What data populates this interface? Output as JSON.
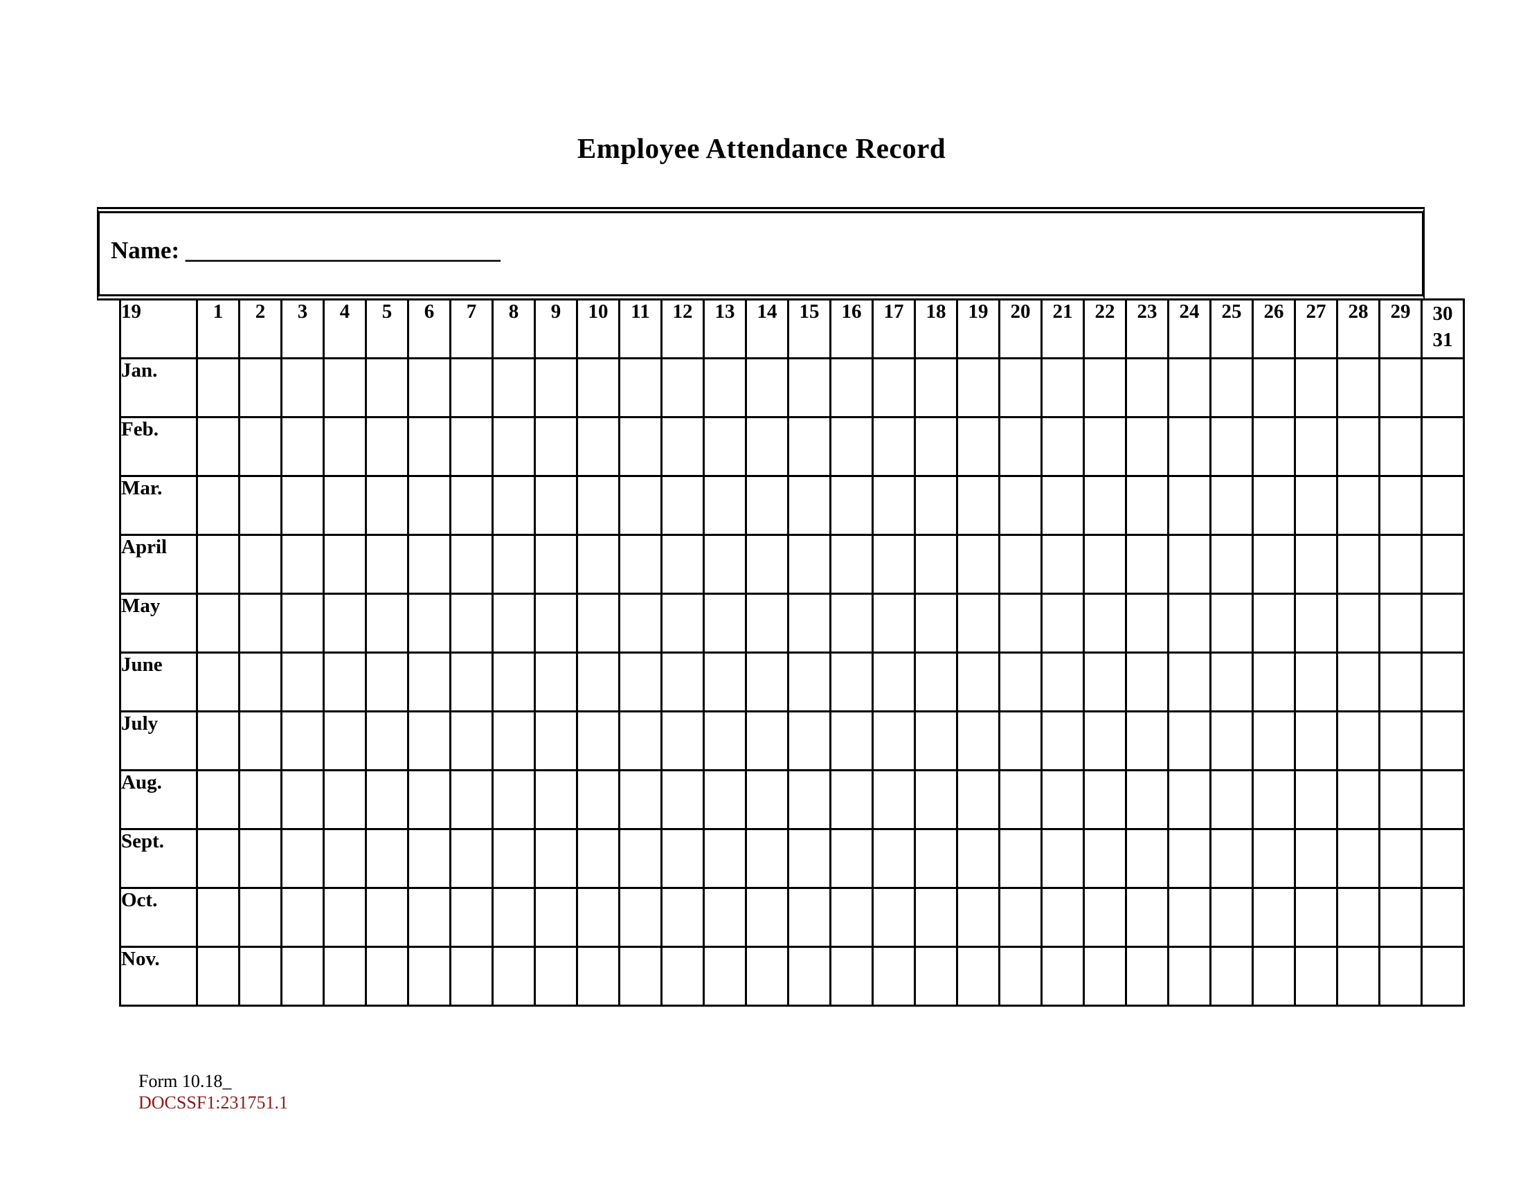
{
  "title": "Employee Attendance Record",
  "name_box": {
    "label": "Name:",
    "underline": "__________________________"
  },
  "table": {
    "year_header": "19",
    "day_headers": [
      "1",
      "2",
      "3",
      "4",
      "5",
      "6",
      "7",
      "8",
      "9",
      "10",
      "11",
      "12",
      "13",
      "14",
      "15",
      "16",
      "17",
      "18",
      "19",
      "20",
      "21",
      "22",
      "23",
      "24",
      "25",
      "26",
      "27",
      "28",
      "29"
    ],
    "last_day_header": [
      "30",
      "31"
    ],
    "months": [
      "Jan.",
      "Feb.",
      "Mar.",
      "April",
      "May",
      "June",
      "July",
      "Aug.",
      "Sept.",
      "Oct.",
      "Nov."
    ],
    "day_columns": 30
  },
  "footer": {
    "form_number": "Form 10.18_",
    "doc_id": "DOCSSF1:231751.1",
    "doc_id_color": "#8B1A1A"
  },
  "colors": {
    "background": "#FFFFFF",
    "text": "#000000",
    "border": "#000000"
  }
}
